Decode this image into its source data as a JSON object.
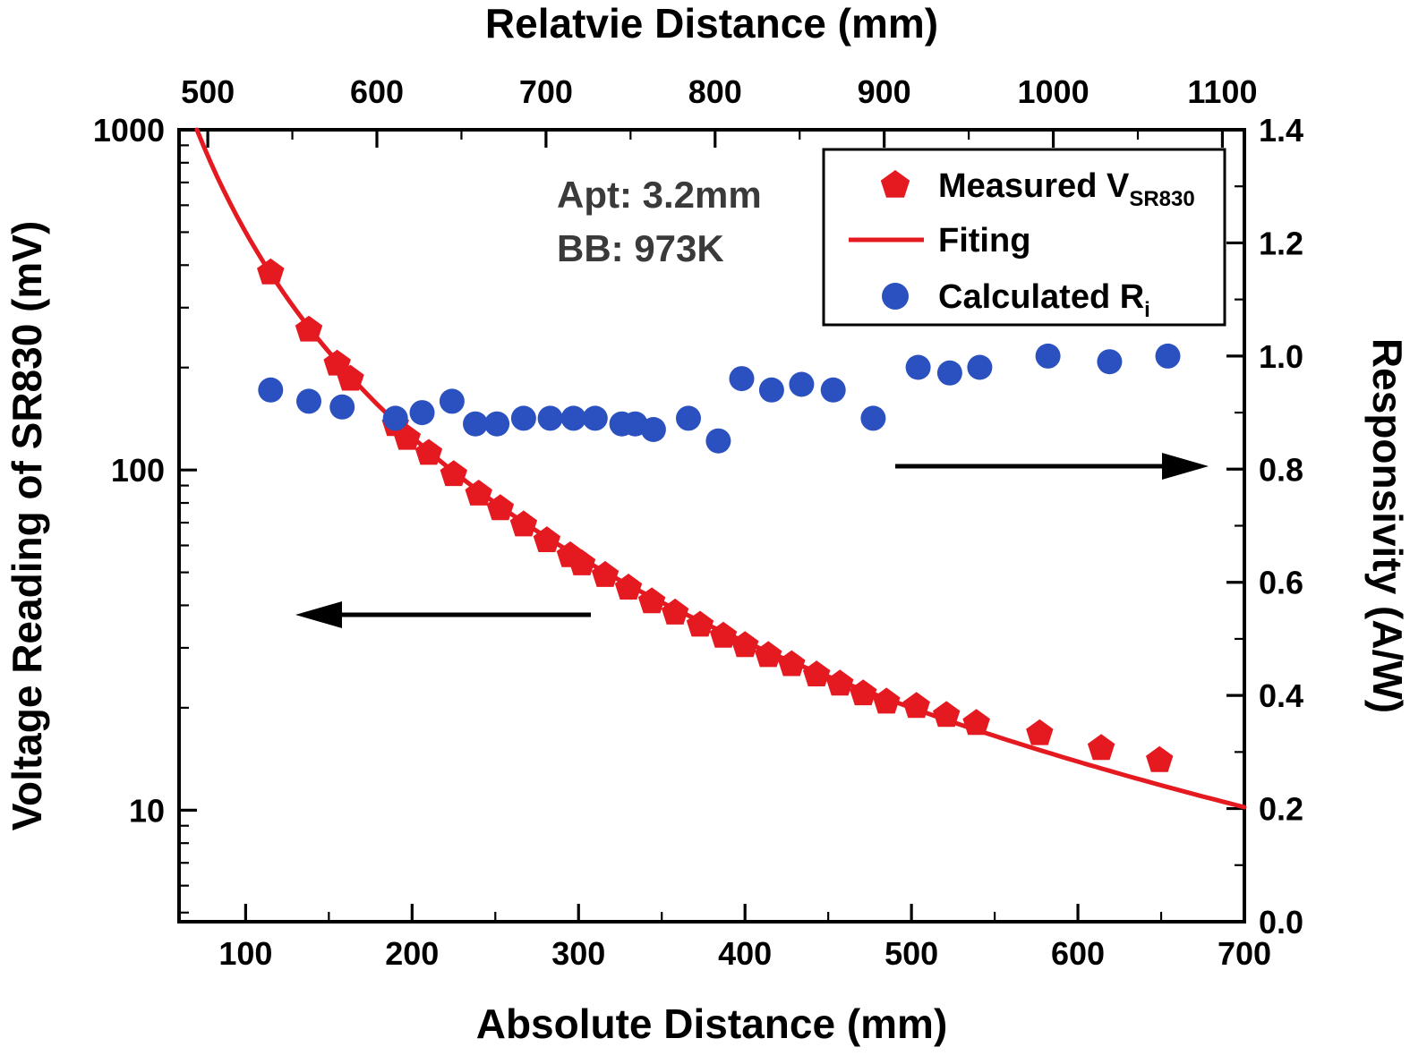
{
  "chart_data": {
    "type": "scatter",
    "title_top": "Relatvie Distance (mm)",
    "xlabel": "Absolute Distance (mm)",
    "ylabel_left": "Voltage Reading of SR830 (mV)",
    "ylabel_right": "Responsivity (A/W)",
    "annotation": {
      "line1": "Apt: 3.2mm",
      "line2": "BB: 973K"
    },
    "grid": false,
    "legend_position": "top-right",
    "colors": {
      "red": "#e41a20",
      "blue": "#2b50c0",
      "black": "#000000",
      "annotation_gray": "#3a3a3a"
    },
    "axes": {
      "bottom": {
        "label": "Absolute Distance (mm)",
        "min": 60,
        "max": 700,
        "ticks": [
          100,
          200,
          300,
          400,
          500,
          600,
          700
        ],
        "minor_step": 50
      },
      "top": {
        "label": "Relatvie Distance (mm)",
        "min": 483,
        "max": 1113,
        "ticks": [
          500,
          600,
          700,
          800,
          900,
          1000,
          1100
        ],
        "minor_step": 50
      },
      "left": {
        "label": "Voltage Reading of SR830 (mV)",
        "scale": "log",
        "min": 4.7,
        "max": 1000,
        "ticks": [
          10,
          100,
          1000
        ]
      },
      "right": {
        "label": "Responsivity (A/W)",
        "min": 0,
        "max": 1.4,
        "ticks": [
          0,
          0.2,
          0.4,
          0.6,
          0.8,
          1,
          1.2,
          1.4
        ],
        "minor_step": 0.1
      }
    },
    "legend": [
      {
        "symbol": "pentagon",
        "color": "#e41a20",
        "label": "Measured  V",
        "label_sub": "SR830"
      },
      {
        "symbol": "line",
        "color": "#e41a20",
        "label": "Fiting",
        "label_sub": ""
      },
      {
        "symbol": "circle",
        "color": "#2b50c0",
        "label": "Calculated R",
        "label_sub": "i"
      }
    ],
    "series": [
      {
        "name": "Measured V_SR830",
        "marker": "pentagon",
        "color": "#e41a20",
        "axis": "left",
        "points": [
          [
            115,
            380
          ],
          [
            138,
            258
          ],
          [
            155,
            205
          ],
          [
            163,
            185
          ],
          [
            190,
            136
          ],
          [
            197,
            124
          ],
          [
            210,
            112
          ],
          [
            225,
            97
          ],
          [
            240,
            85
          ],
          [
            253,
            77
          ],
          [
            267,
            69
          ],
          [
            281,
            62
          ],
          [
            295,
            56
          ],
          [
            302,
            53
          ],
          [
            316,
            49
          ],
          [
            330,
            45
          ],
          [
            344,
            41
          ],
          [
            358,
            38
          ],
          [
            373,
            35
          ],
          [
            387,
            32.5
          ],
          [
            400,
            30.5
          ],
          [
            414,
            28.5
          ],
          [
            428,
            26.8
          ],
          [
            443,
            25
          ],
          [
            457,
            23.5
          ],
          [
            471,
            22
          ],
          [
            485,
            20.8
          ],
          [
            503,
            20.2
          ],
          [
            521,
            19
          ],
          [
            539,
            18
          ],
          [
            577,
            16.8
          ],
          [
            614,
            15.2
          ],
          [
            649,
            14
          ]
        ]
      },
      {
        "name": "Fiting",
        "type": "line",
        "color": "#e41a20",
        "axis": "left",
        "fit": {
          "formula": "V = A / d^2",
          "coefficient": 5000000,
          "power": 2,
          "d_end": 700
        }
      },
      {
        "name": "Calculated Ri",
        "marker": "circle",
        "color": "#2b50c0",
        "axis": "right",
        "points": [
          [
            115,
            0.94
          ],
          [
            138,
            0.92
          ],
          [
            158,
            0.91
          ],
          [
            190,
            0.89
          ],
          [
            206,
            0.9
          ],
          [
            224,
            0.92
          ],
          [
            238,
            0.88
          ],
          [
            251,
            0.88
          ],
          [
            267,
            0.89
          ],
          [
            283,
            0.89
          ],
          [
            297,
            0.89
          ],
          [
            310,
            0.89
          ],
          [
            326,
            0.88
          ],
          [
            334,
            0.88
          ],
          [
            345,
            0.87
          ],
          [
            366,
            0.89
          ],
          [
            384,
            0.85
          ],
          [
            398,
            0.96
          ],
          [
            416,
            0.94
          ],
          [
            434,
            0.95
          ],
          [
            453,
            0.94
          ],
          [
            477,
            0.89
          ],
          [
            504,
            0.98
          ],
          [
            523,
            0.97
          ],
          [
            541,
            0.98
          ],
          [
            582,
            1.0
          ],
          [
            619,
            0.99
          ],
          [
            654,
            1.0
          ]
        ]
      }
    ],
    "arrows": [
      {
        "direction": "left",
        "meaning": "points to left voltage axis"
      },
      {
        "direction": "right",
        "meaning": "points to right responsivity axis"
      }
    ]
  }
}
